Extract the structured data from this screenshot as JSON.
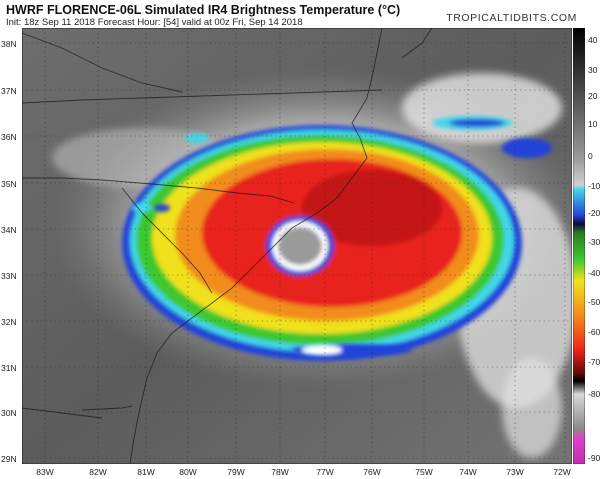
{
  "header": {
    "title": "HWRF FLORENCE-06L Simulated IR4 Brightness Temperature (°C)",
    "subtitle": "Init: 18z Sep 11 2018   Forecast Hour: [54]   valid at 00z Fri, Sep 14 2018",
    "brand": "TROPICALTIDBITS.COM"
  },
  "map": {
    "lat_labels": [
      "38N",
      "37N",
      "36N",
      "35N",
      "34N",
      "33N",
      "32N",
      "31N",
      "30N",
      "29N"
    ],
    "lon_labels": [
      "83W",
      "82W",
      "81W",
      "80W",
      "79W",
      "78W",
      "77W",
      "76W",
      "75W",
      "74W",
      "73W",
      "72W"
    ]
  },
  "colorbar": {
    "labels": [
      "40",
      "30",
      "20",
      "10",
      "0",
      "-10",
      "-20",
      "-30",
      "-40",
      "-50",
      "-60",
      "-70",
      "-80",
      "-90"
    ],
    "colors": {
      "red": "#e8231a",
      "orange": "#f28c1a",
      "yellow": "#f0e11c",
      "green": "#3cc82d",
      "blue": "#2343d8",
      "cyan": "#42d7e8",
      "black": "#000000",
      "magenta": "#e040c8"
    }
  }
}
